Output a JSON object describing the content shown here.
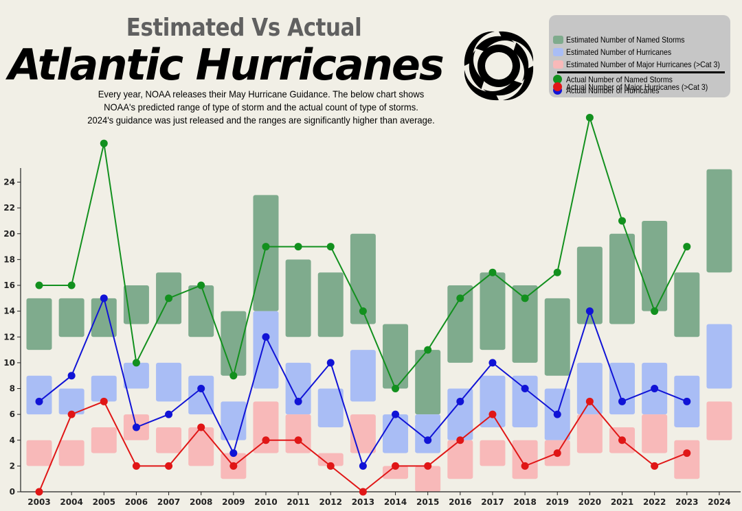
{
  "header": {
    "supertitle": "Estimated Vs Actual",
    "title": "Atlantic Hurricanes",
    "intro_lines": [
      "Every year, NOAA releases their May Hurricane Guidance. The below chart shows",
      "NOAA's predicted range of type of storm and the actual count of type of storms.",
      "2024's guidance was just released and the ranges are significantly higher than average."
    ]
  },
  "legend": {
    "items": [
      {
        "label": "Estimated Number of Named Storms",
        "kind": "range",
        "color": "#7fab8d"
      },
      {
        "label": "Estimated Number of Hurricanes",
        "kind": "range",
        "color": "#a9bdf5"
      },
      {
        "label": "Estimated Number of Major Hurricanes (>Cat 3)",
        "kind": "range",
        "color": "#f8b9b9"
      },
      {
        "label": "Actual Number of Named Storms",
        "kind": "actual",
        "color": "#12901e"
      },
      {
        "label": "Actual Number of Hurricanes",
        "kind": "actual",
        "color": "#1013d6"
      },
      {
        "label": "Actual Number of Major Hurricanes (>Cat 3)",
        "kind": "actual",
        "color": "#e01616"
      }
    ]
  },
  "chart_data": {
    "type": "line",
    "title": "Atlantic Hurricanes",
    "xlabel": "",
    "ylabel": "",
    "ylim": [
      0,
      25
    ],
    "yticks": [
      0,
      2,
      4,
      6,
      8,
      10,
      12,
      14,
      16,
      18,
      20,
      22,
      24
    ],
    "categories": [
      "2003",
      "2004",
      "2005",
      "2006",
      "2007",
      "2008",
      "2009",
      "2010",
      "2011",
      "2012",
      "2013",
      "2014",
      "2015",
      "2016",
      "2017",
      "2018",
      "2019",
      "2020",
      "2021",
      "2022",
      "2023",
      "2024"
    ],
    "ranges": [
      {
        "name": "Estimated Number of Named Storms",
        "color": "#7fab8d",
        "low": [
          11,
          12,
          12,
          13,
          13,
          12,
          9,
          14,
          12,
          12,
          13,
          8,
          6,
          10,
          11,
          10,
          9,
          13,
          13,
          14,
          12,
          17
        ],
        "high": [
          15,
          15,
          15,
          16,
          17,
          16,
          14,
          23,
          18,
          17,
          20,
          13,
          11,
          16,
          17,
          16,
          15,
          19,
          20,
          21,
          17,
          25
        ]
      },
      {
        "name": "Estimated Number of Hurricanes",
        "color": "#a9bdf5",
        "low": [
          6,
          6,
          7,
          8,
          7,
          6,
          4,
          8,
          6,
          5,
          7,
          3,
          3,
          4,
          5,
          5,
          4,
          6,
          6,
          6,
          5,
          8
        ],
        "high": [
          9,
          8,
          9,
          10,
          10,
          9,
          7,
          14,
          10,
          8,
          11,
          6,
          6,
          8,
          9,
          9,
          8,
          10,
          10,
          10,
          9,
          13
        ]
      },
      {
        "name": "Estimated Number of Major Hurricanes (>Cat 3)",
        "color": "#f8b9b9",
        "low": [
          2,
          2,
          3,
          4,
          3,
          2,
          1,
          3,
          3,
          2,
          3,
          1,
          0,
          1,
          2,
          1,
          2,
          3,
          3,
          3,
          1,
          4
        ],
        "high": [
          4,
          4,
          5,
          6,
          5,
          5,
          3,
          7,
          6,
          3,
          6,
          2,
          2,
          4,
          4,
          4,
          4,
          6,
          5,
          6,
          4,
          7
        ]
      }
    ],
    "series": [
      {
        "name": "Actual Number of Named Storms",
        "color": "#12901e",
        "values": [
          16,
          16,
          27,
          10,
          15,
          16,
          9,
          19,
          19,
          19,
          14,
          8,
          11,
          15,
          17,
          15,
          17,
          29,
          21,
          14,
          19,
          null
        ]
      },
      {
        "name": "Actual Number of Hurricanes",
        "color": "#1013d6",
        "values": [
          7,
          9,
          15,
          5,
          6,
          8,
          3,
          12,
          7,
          10,
          2,
          6,
          4,
          7,
          10,
          8,
          6,
          14,
          7,
          8,
          7,
          null
        ]
      },
      {
        "name": "Actual Number of Major Hurricanes (>Cat 3)",
        "color": "#e01616",
        "values": [
          0,
          6,
          7,
          2,
          2,
          5,
          2,
          4,
          4,
          2,
          0,
          2,
          2,
          4,
          6,
          2,
          3,
          7,
          4,
          2,
          3,
          null
        ]
      }
    ]
  }
}
